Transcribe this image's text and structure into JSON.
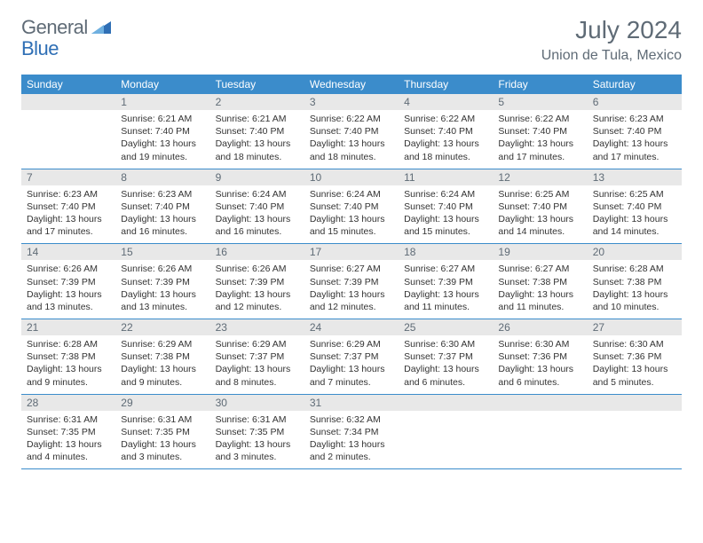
{
  "branding": {
    "word1": "General",
    "word2": "Blue",
    "color_general": "#5f6b76",
    "color_blue": "#2f6fb5",
    "triangle_color": "#2f6fb5"
  },
  "header": {
    "title": "July 2024",
    "location": "Union de Tula, Mexico",
    "title_fontsize": 28,
    "location_fontsize": 16,
    "text_color": "#5f6b76"
  },
  "calendar": {
    "header_bg": "#3b8ccb",
    "header_text_color": "#ffffff",
    "daynum_bg": "#e8e8e8",
    "daynum_color": "#5f6b76",
    "rule_color": "#3b8ccb",
    "body_fontsize": 10.5,
    "days": [
      "Sunday",
      "Monday",
      "Tuesday",
      "Wednesday",
      "Thursday",
      "Friday",
      "Saturday"
    ],
    "weeks": [
      {
        "nums": [
          "",
          "1",
          "2",
          "3",
          "4",
          "5",
          "6"
        ],
        "cells": [
          null,
          {
            "sunrise": "Sunrise: 6:21 AM",
            "sunset": "Sunset: 7:40 PM",
            "daylight": "Daylight: 13 hours and 19 minutes."
          },
          {
            "sunrise": "Sunrise: 6:21 AM",
            "sunset": "Sunset: 7:40 PM",
            "daylight": "Daylight: 13 hours and 18 minutes."
          },
          {
            "sunrise": "Sunrise: 6:22 AM",
            "sunset": "Sunset: 7:40 PM",
            "daylight": "Daylight: 13 hours and 18 minutes."
          },
          {
            "sunrise": "Sunrise: 6:22 AM",
            "sunset": "Sunset: 7:40 PM",
            "daylight": "Daylight: 13 hours and 18 minutes."
          },
          {
            "sunrise": "Sunrise: 6:22 AM",
            "sunset": "Sunset: 7:40 PM",
            "daylight": "Daylight: 13 hours and 17 minutes."
          },
          {
            "sunrise": "Sunrise: 6:23 AM",
            "sunset": "Sunset: 7:40 PM",
            "daylight": "Daylight: 13 hours and 17 minutes."
          }
        ]
      },
      {
        "nums": [
          "7",
          "8",
          "9",
          "10",
          "11",
          "12",
          "13"
        ],
        "cells": [
          {
            "sunrise": "Sunrise: 6:23 AM",
            "sunset": "Sunset: 7:40 PM",
            "daylight": "Daylight: 13 hours and 17 minutes."
          },
          {
            "sunrise": "Sunrise: 6:23 AM",
            "sunset": "Sunset: 7:40 PM",
            "daylight": "Daylight: 13 hours and 16 minutes."
          },
          {
            "sunrise": "Sunrise: 6:24 AM",
            "sunset": "Sunset: 7:40 PM",
            "daylight": "Daylight: 13 hours and 16 minutes."
          },
          {
            "sunrise": "Sunrise: 6:24 AM",
            "sunset": "Sunset: 7:40 PM",
            "daylight": "Daylight: 13 hours and 15 minutes."
          },
          {
            "sunrise": "Sunrise: 6:24 AM",
            "sunset": "Sunset: 7:40 PM",
            "daylight": "Daylight: 13 hours and 15 minutes."
          },
          {
            "sunrise": "Sunrise: 6:25 AM",
            "sunset": "Sunset: 7:40 PM",
            "daylight": "Daylight: 13 hours and 14 minutes."
          },
          {
            "sunrise": "Sunrise: 6:25 AM",
            "sunset": "Sunset: 7:40 PM",
            "daylight": "Daylight: 13 hours and 14 minutes."
          }
        ]
      },
      {
        "nums": [
          "14",
          "15",
          "16",
          "17",
          "18",
          "19",
          "20"
        ],
        "cells": [
          {
            "sunrise": "Sunrise: 6:26 AM",
            "sunset": "Sunset: 7:39 PM",
            "daylight": "Daylight: 13 hours and 13 minutes."
          },
          {
            "sunrise": "Sunrise: 6:26 AM",
            "sunset": "Sunset: 7:39 PM",
            "daylight": "Daylight: 13 hours and 13 minutes."
          },
          {
            "sunrise": "Sunrise: 6:26 AM",
            "sunset": "Sunset: 7:39 PM",
            "daylight": "Daylight: 13 hours and 12 minutes."
          },
          {
            "sunrise": "Sunrise: 6:27 AM",
            "sunset": "Sunset: 7:39 PM",
            "daylight": "Daylight: 13 hours and 12 minutes."
          },
          {
            "sunrise": "Sunrise: 6:27 AM",
            "sunset": "Sunset: 7:39 PM",
            "daylight": "Daylight: 13 hours and 11 minutes."
          },
          {
            "sunrise": "Sunrise: 6:27 AM",
            "sunset": "Sunset: 7:38 PM",
            "daylight": "Daylight: 13 hours and 11 minutes."
          },
          {
            "sunrise": "Sunrise: 6:28 AM",
            "sunset": "Sunset: 7:38 PM",
            "daylight": "Daylight: 13 hours and 10 minutes."
          }
        ]
      },
      {
        "nums": [
          "21",
          "22",
          "23",
          "24",
          "25",
          "26",
          "27"
        ],
        "cells": [
          {
            "sunrise": "Sunrise: 6:28 AM",
            "sunset": "Sunset: 7:38 PM",
            "daylight": "Daylight: 13 hours and 9 minutes."
          },
          {
            "sunrise": "Sunrise: 6:29 AM",
            "sunset": "Sunset: 7:38 PM",
            "daylight": "Daylight: 13 hours and 9 minutes."
          },
          {
            "sunrise": "Sunrise: 6:29 AM",
            "sunset": "Sunset: 7:37 PM",
            "daylight": "Daylight: 13 hours and 8 minutes."
          },
          {
            "sunrise": "Sunrise: 6:29 AM",
            "sunset": "Sunset: 7:37 PM",
            "daylight": "Daylight: 13 hours and 7 minutes."
          },
          {
            "sunrise": "Sunrise: 6:30 AM",
            "sunset": "Sunset: 7:37 PM",
            "daylight": "Daylight: 13 hours and 6 minutes."
          },
          {
            "sunrise": "Sunrise: 6:30 AM",
            "sunset": "Sunset: 7:36 PM",
            "daylight": "Daylight: 13 hours and 6 minutes."
          },
          {
            "sunrise": "Sunrise: 6:30 AM",
            "sunset": "Sunset: 7:36 PM",
            "daylight": "Daylight: 13 hours and 5 minutes."
          }
        ]
      },
      {
        "nums": [
          "28",
          "29",
          "30",
          "31",
          "",
          "",
          ""
        ],
        "cells": [
          {
            "sunrise": "Sunrise: 6:31 AM",
            "sunset": "Sunset: 7:35 PM",
            "daylight": "Daylight: 13 hours and 4 minutes."
          },
          {
            "sunrise": "Sunrise: 6:31 AM",
            "sunset": "Sunset: 7:35 PM",
            "daylight": "Daylight: 13 hours and 3 minutes."
          },
          {
            "sunrise": "Sunrise: 6:31 AM",
            "sunset": "Sunset: 7:35 PM",
            "daylight": "Daylight: 13 hours and 3 minutes."
          },
          {
            "sunrise": "Sunrise: 6:32 AM",
            "sunset": "Sunset: 7:34 PM",
            "daylight": "Daylight: 13 hours and 2 minutes."
          },
          null,
          null,
          null
        ]
      }
    ]
  }
}
